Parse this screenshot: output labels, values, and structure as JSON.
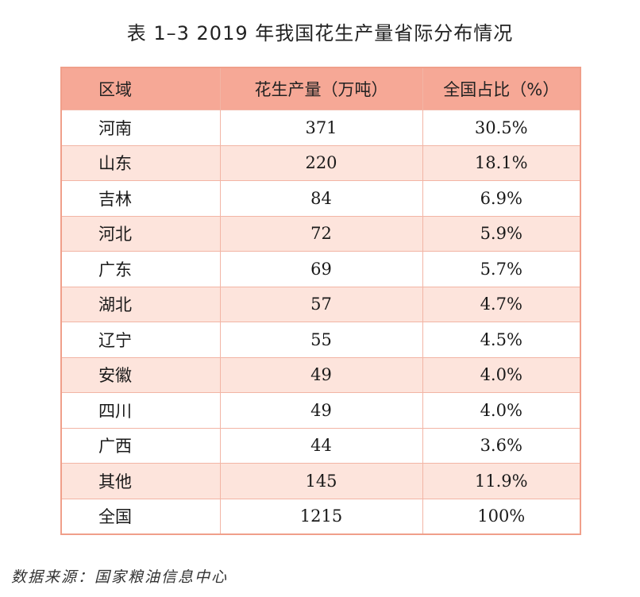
{
  "title": "表 1–3   2019 年我国花生产量省际分布情况",
  "headers": {
    "region": "区域",
    "production": "花生产量（万吨）",
    "share": "全国占比（%）"
  },
  "rows": [
    {
      "region": "河南",
      "production": "371",
      "share": "30.5%"
    },
    {
      "region": "山东",
      "production": "220",
      "share": "18.1%"
    },
    {
      "region": "吉林",
      "production": "84",
      "share": "6.9%"
    },
    {
      "region": "河北",
      "production": "72",
      "share": "5.9%"
    },
    {
      "region": "广东",
      "production": "69",
      "share": "5.7%"
    },
    {
      "region": "湖北",
      "production": "57",
      "share": "4.7%"
    },
    {
      "region": "辽宁",
      "production": "55",
      "share": "4.5%"
    },
    {
      "region": "安徽",
      "production": "49",
      "share": "4.0%"
    },
    {
      "region": "四川",
      "production": "49",
      "share": "4.0%"
    },
    {
      "region": "广西",
      "production": "44",
      "share": "3.6%"
    },
    {
      "region": "其他",
      "production": "145",
      "share": "11.9%"
    },
    {
      "region": "全国",
      "production": "1215",
      "share": "100%"
    }
  ],
  "source": "数据来源：国家粮油信息中心",
  "colors": {
    "header_bg": "#f6a896",
    "alt_row_bg": "#fde4dc",
    "border": "#f2b5a5"
  }
}
